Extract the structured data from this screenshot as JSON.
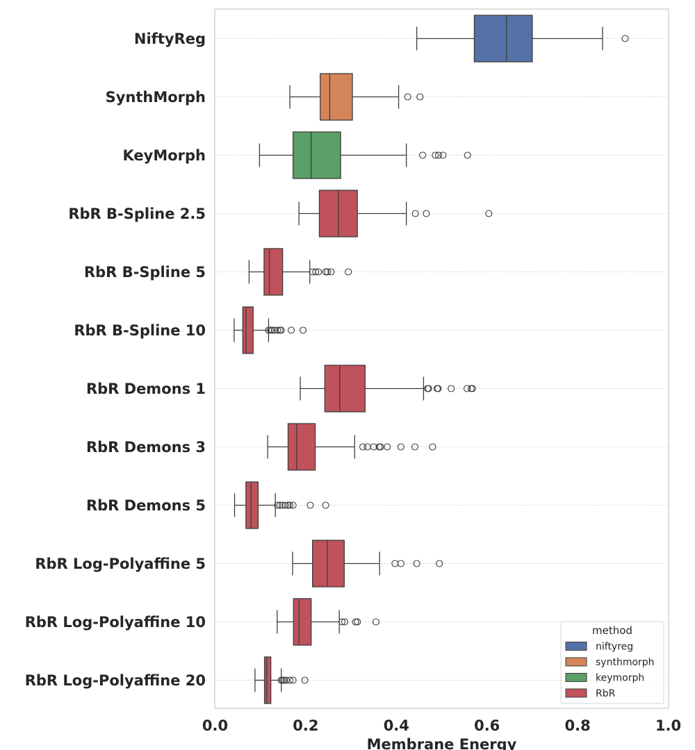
{
  "chart_data": {
    "type": "boxplot",
    "orientation": "horizontal",
    "title": "",
    "xlabel": "Membrane Energy",
    "ylabel": "",
    "xlim": [
      0.0,
      1.0
    ],
    "xticks": [
      {
        "value": 0.0,
        "label": "0.0"
      },
      {
        "value": 0.2,
        "label": "0.2"
      },
      {
        "value": 0.4,
        "label": "0.4"
      },
      {
        "value": 0.6,
        "label": "0.6"
      },
      {
        "value": 0.8,
        "label": "0.8"
      },
      {
        "value": 1.0,
        "label": "1.0"
      }
    ],
    "grid": "horizontal dotted",
    "legend": {
      "title": "method",
      "placement": "bottom-right",
      "entries": [
        {
          "label": "niftyreg",
          "color": "#5572a8"
        },
        {
          "label": "synthmorph",
          "color": "#d4855a"
        },
        {
          "label": "keymorph",
          "color": "#5a9e68"
        },
        {
          "label": "RbR",
          "color": "#c0525c"
        }
      ]
    },
    "boxes": [
      {
        "category": "NiftyReg",
        "method": "niftyreg",
        "whisker_low": 0.445,
        "q1": 0.572,
        "median": 0.643,
        "q3": 0.7,
        "whisker_high": 0.855,
        "outliers": [
          0.905
        ]
      },
      {
        "category": "SynthMorph",
        "method": "synthmorph",
        "whisker_low": 0.165,
        "q1": 0.232,
        "median": 0.253,
        "q3": 0.303,
        "whisker_high": 0.405,
        "outliers": [
          0.425,
          0.452
        ]
      },
      {
        "category": "KeyMorph",
        "method": "keymorph",
        "whisker_low": 0.098,
        "q1": 0.172,
        "median": 0.212,
        "q3": 0.277,
        "whisker_high": 0.422,
        "outliers": [
          0.458,
          0.486,
          0.493,
          0.503,
          0.557
        ]
      },
      {
        "category": "RbR B-Spline 2.5",
        "method": "RbR",
        "whisker_low": 0.185,
        "q1": 0.23,
        "median": 0.272,
        "q3": 0.314,
        "whisker_high": 0.422,
        "outliers": [
          0.442,
          0.466,
          0.604
        ]
      },
      {
        "category": "RbR B-Spline 5",
        "method": "RbR",
        "whisker_low": 0.075,
        "q1": 0.108,
        "median": 0.12,
        "q3": 0.149,
        "whisker_high": 0.209,
        "outliers": [
          0.215,
          0.222,
          0.228,
          0.244,
          0.248,
          0.256,
          0.294
        ]
      },
      {
        "category": "RbR B-Spline 10",
        "method": "RbR",
        "whisker_low": 0.042,
        "q1": 0.061,
        "median": 0.068,
        "q3": 0.084,
        "whisker_high": 0.118,
        "outliers": [
          0.118,
          0.122,
          0.126,
          0.131,
          0.138,
          0.143,
          0.146,
          0.168,
          0.194
        ]
      },
      {
        "category": "RbR Demons 1",
        "method": "RbR",
        "whisker_low": 0.188,
        "q1": 0.242,
        "median": 0.275,
        "q3": 0.331,
        "whisker_high": 0.46,
        "outliers": [
          0.469,
          0.471,
          0.49,
          0.492,
          0.521,
          0.556,
          0.565,
          0.568
        ]
      },
      {
        "category": "RbR Demons 3",
        "method": "RbR",
        "whisker_low": 0.116,
        "q1": 0.161,
        "median": 0.18,
        "q3": 0.221,
        "whisker_high": 0.308,
        "outliers": [
          0.326,
          0.336,
          0.35,
          0.362,
          0.365,
          0.38,
          0.41,
          0.441,
          0.48
        ]
      },
      {
        "category": "RbR Demons 5",
        "method": "RbR",
        "whisker_low": 0.043,
        "q1": 0.068,
        "median": 0.079,
        "q3": 0.095,
        "whisker_high": 0.133,
        "outliers": [
          0.138,
          0.143,
          0.148,
          0.155,
          0.161,
          0.165,
          0.172,
          0.21,
          0.244
        ]
      },
      {
        "category": "RbR Log-Polyaffine 5",
        "method": "RbR",
        "whisker_low": 0.171,
        "q1": 0.215,
        "median": 0.248,
        "q3": 0.285,
        "whisker_high": 0.363,
        "outliers": [
          0.397,
          0.41,
          0.445,
          0.495
        ]
      },
      {
        "category": "RbR Log-Polyaffine 10",
        "method": "RbR",
        "whisker_low": 0.137,
        "q1": 0.173,
        "median": 0.185,
        "q3": 0.212,
        "whisker_high": 0.274,
        "outliers": [
          0.28,
          0.286,
          0.31,
          0.314,
          0.355
        ]
      },
      {
        "category": "RbR Log-Polyaffine 20",
        "method": "RbR",
        "whisker_low": 0.088,
        "q1": 0.109,
        "median": 0.114,
        "q3": 0.123,
        "whisker_high": 0.146,
        "outliers": [
          0.146,
          0.149,
          0.153,
          0.157,
          0.165,
          0.172,
          0.198
        ]
      }
    ]
  }
}
